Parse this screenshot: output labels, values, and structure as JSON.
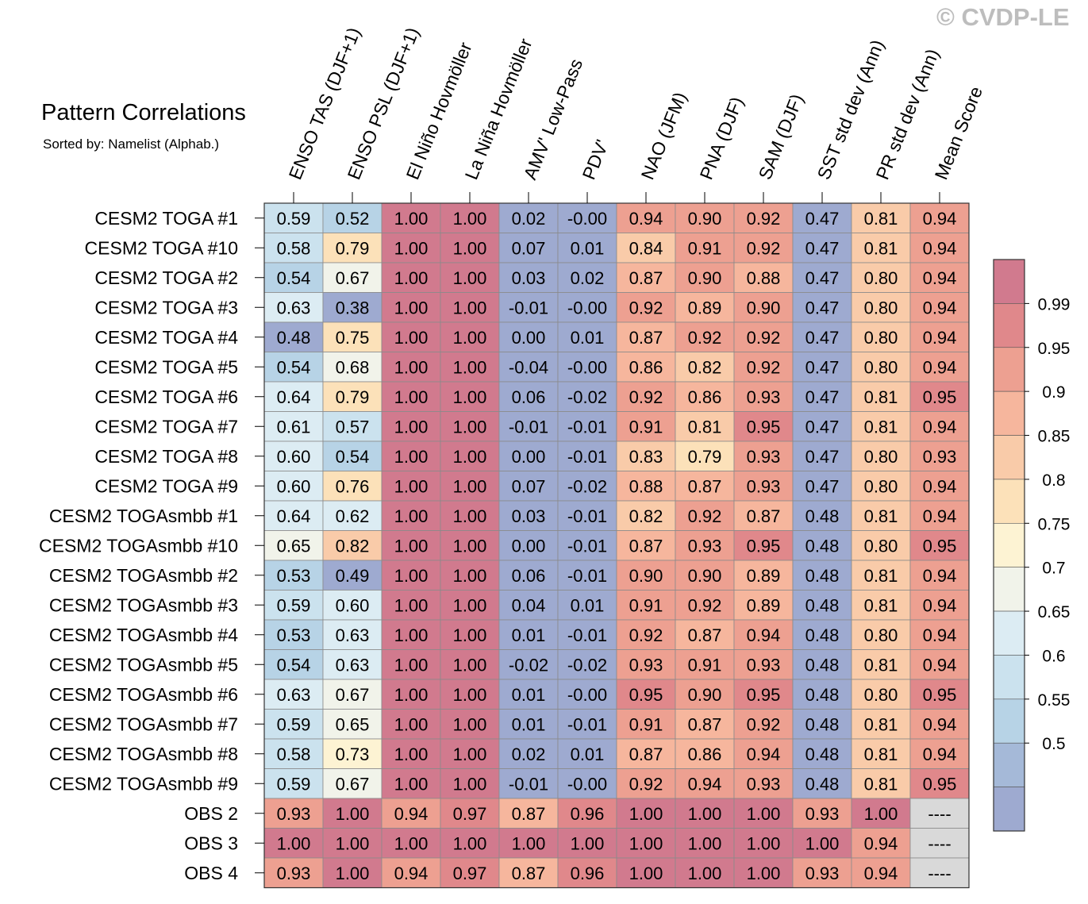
{
  "watermark": "© CVDP-LE",
  "chart_data": {
    "type": "heatmap",
    "title": "Pattern Correlations",
    "subtitle": "Sorted by: Namelist (Alphab.)",
    "columns": [
      "ENSO TAS (DJF+1)",
      "ENSO PSL (DJF+1)",
      "El Niño Hovmöller",
      "La Niña Hovmöller",
      "AMV' Low-Pass",
      "PDV'",
      "NAO (JFM)",
      "PNA (DJF)",
      "SAM (DJF)",
      "SST std dev (Ann)",
      "PR std dev (Ann)",
      "Mean Score"
    ],
    "rows": [
      "CESM2 TOGA #1",
      "CESM2 TOGA #10",
      "CESM2 TOGA #2",
      "CESM2 TOGA #3",
      "CESM2 TOGA #4",
      "CESM2 TOGA #5",
      "CESM2 TOGA #6",
      "CESM2 TOGA #7",
      "CESM2 TOGA #8",
      "CESM2 TOGA #9",
      "CESM2 TOGAsmbb #1",
      "CESM2 TOGAsmbb #10",
      "CESM2 TOGAsmbb #2",
      "CESM2 TOGAsmbb #3",
      "CESM2 TOGAsmbb #4",
      "CESM2 TOGAsmbb #5",
      "CESM2 TOGAsmbb #6",
      "CESM2 TOGAsmbb #7",
      "CESM2 TOGAsmbb #8",
      "CESM2 TOGAsmbb #9",
      "OBS 2",
      "OBS 3",
      "OBS 4"
    ],
    "values": [
      [
        "0.59",
        "0.52",
        "1.00",
        "1.00",
        "0.02",
        "-0.00",
        "0.94",
        "0.90",
        "0.92",
        "0.47",
        "0.81",
        "0.94"
      ],
      [
        "0.58",
        "0.79",
        "1.00",
        "1.00",
        "0.07",
        "0.01",
        "0.84",
        "0.91",
        "0.92",
        "0.47",
        "0.81",
        "0.94"
      ],
      [
        "0.54",
        "0.67",
        "1.00",
        "1.00",
        "0.03",
        "0.02",
        "0.87",
        "0.90",
        "0.88",
        "0.47",
        "0.80",
        "0.94"
      ],
      [
        "0.63",
        "0.38",
        "1.00",
        "1.00",
        "-0.01",
        "-0.00",
        "0.92",
        "0.89",
        "0.90",
        "0.47",
        "0.80",
        "0.94"
      ],
      [
        "0.48",
        "0.75",
        "1.00",
        "1.00",
        "0.00",
        "0.01",
        "0.87",
        "0.92",
        "0.92",
        "0.47",
        "0.80",
        "0.94"
      ],
      [
        "0.54",
        "0.68",
        "1.00",
        "1.00",
        "-0.04",
        "-0.00",
        "0.86",
        "0.82",
        "0.92",
        "0.47",
        "0.80",
        "0.94"
      ],
      [
        "0.64",
        "0.79",
        "1.00",
        "1.00",
        "0.06",
        "-0.02",
        "0.92",
        "0.86",
        "0.93",
        "0.47",
        "0.81",
        "0.95"
      ],
      [
        "0.61",
        "0.57",
        "1.00",
        "1.00",
        "-0.01",
        "-0.01",
        "0.91",
        "0.81",
        "0.95",
        "0.47",
        "0.81",
        "0.94"
      ],
      [
        "0.60",
        "0.54",
        "1.00",
        "1.00",
        "0.00",
        "-0.01",
        "0.83",
        "0.79",
        "0.93",
        "0.47",
        "0.80",
        "0.93"
      ],
      [
        "0.60",
        "0.76",
        "1.00",
        "1.00",
        "0.07",
        "-0.02",
        "0.88",
        "0.87",
        "0.93",
        "0.47",
        "0.80",
        "0.94"
      ],
      [
        "0.64",
        "0.62",
        "1.00",
        "1.00",
        "0.03",
        "-0.01",
        "0.82",
        "0.92",
        "0.87",
        "0.48",
        "0.81",
        "0.94"
      ],
      [
        "0.65",
        "0.82",
        "1.00",
        "1.00",
        "0.00",
        "-0.01",
        "0.87",
        "0.93",
        "0.95",
        "0.48",
        "0.80",
        "0.95"
      ],
      [
        "0.53",
        "0.49",
        "1.00",
        "1.00",
        "0.06",
        "-0.01",
        "0.90",
        "0.90",
        "0.89",
        "0.48",
        "0.81",
        "0.94"
      ],
      [
        "0.59",
        "0.60",
        "1.00",
        "1.00",
        "0.04",
        "0.01",
        "0.91",
        "0.92",
        "0.89",
        "0.48",
        "0.81",
        "0.94"
      ],
      [
        "0.53",
        "0.63",
        "1.00",
        "1.00",
        "0.01",
        "-0.01",
        "0.92",
        "0.87",
        "0.94",
        "0.48",
        "0.80",
        "0.94"
      ],
      [
        "0.54",
        "0.63",
        "1.00",
        "1.00",
        "-0.02",
        "-0.02",
        "0.93",
        "0.91",
        "0.93",
        "0.48",
        "0.81",
        "0.94"
      ],
      [
        "0.63",
        "0.67",
        "1.00",
        "1.00",
        "0.01",
        "-0.00",
        "0.95",
        "0.90",
        "0.95",
        "0.48",
        "0.80",
        "0.95"
      ],
      [
        "0.59",
        "0.65",
        "1.00",
        "1.00",
        "0.01",
        "-0.01",
        "0.91",
        "0.87",
        "0.92",
        "0.48",
        "0.81",
        "0.94"
      ],
      [
        "0.58",
        "0.73",
        "1.00",
        "1.00",
        "0.02",
        "0.01",
        "0.87",
        "0.86",
        "0.94",
        "0.48",
        "0.81",
        "0.94"
      ],
      [
        "0.59",
        "0.67",
        "1.00",
        "1.00",
        "-0.01",
        "-0.00",
        "0.92",
        "0.94",
        "0.93",
        "0.48",
        "0.81",
        "0.95"
      ],
      [
        "0.93",
        "1.00",
        "0.94",
        "0.97",
        "0.87",
        "0.96",
        "1.00",
        "1.00",
        "1.00",
        "0.93",
        "1.00",
        "----"
      ],
      [
        "1.00",
        "1.00",
        "1.00",
        "1.00",
        "1.00",
        "1.00",
        "1.00",
        "1.00",
        "1.00",
        "1.00",
        "0.94",
        "----"
      ],
      [
        "0.93",
        "1.00",
        "0.94",
        "0.97",
        "0.87",
        "0.96",
        "1.00",
        "1.00",
        "1.00",
        "0.93",
        "0.94",
        "----"
      ]
    ],
    "missing_color": "#d9d9d9",
    "colorbar": {
      "labels": [
        "0.99",
        "0.95",
        "0.9",
        "0.85",
        "0.8",
        "0.75",
        "0.7",
        "0.65",
        "0.6",
        "0.55",
        "0.5"
      ],
      "thresholds": [
        0.99,
        0.95,
        0.9,
        0.85,
        0.8,
        0.75,
        0.7,
        0.65,
        0.6,
        0.55,
        0.5
      ],
      "colors": [
        "#d17a8e",
        "#e0888b",
        "#eda091",
        "#f6b69d",
        "#f9cba9",
        "#fce1b9",
        "#fdf3d3",
        "#f1f3ea",
        "#dcecf3",
        "#cbe2ee",
        "#b7d3e6",
        "#a5b9d8",
        "#9eaad0"
      ]
    }
  }
}
